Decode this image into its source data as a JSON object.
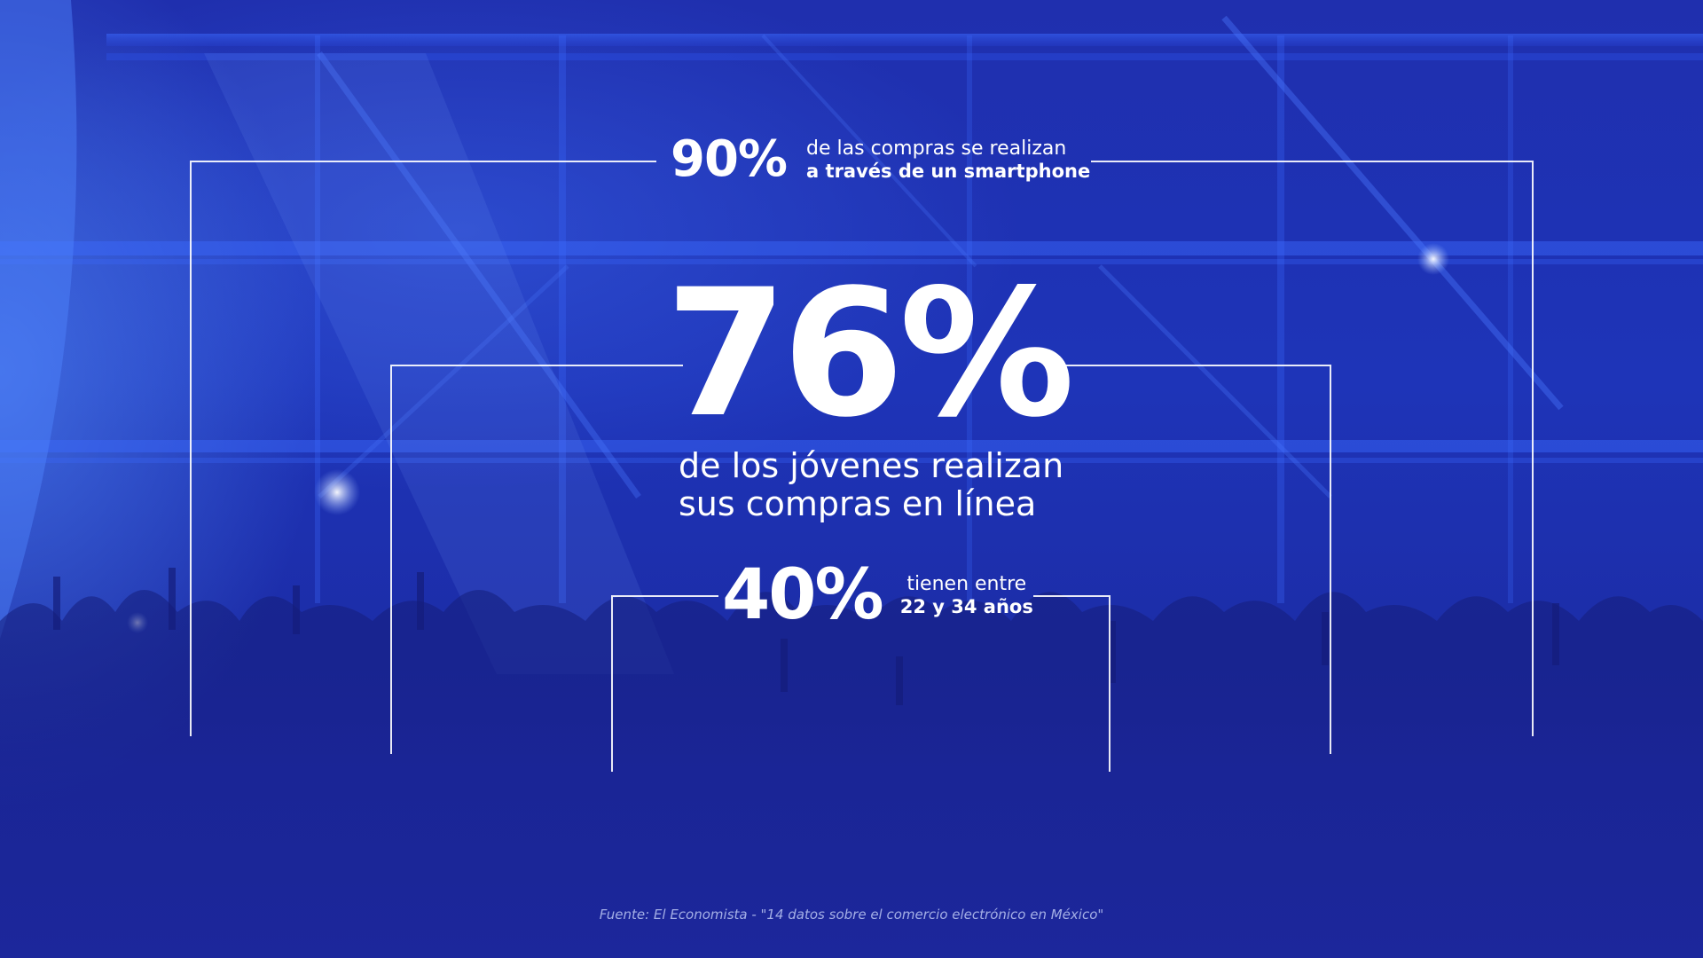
{
  "background": {
    "description_colors": {
      "base": "#1d2fb0",
      "frame_line": "#ffffff"
    }
  },
  "stats": {
    "top": {
      "value": "90%",
      "line1": "de las compras se realizan",
      "line2": "a través de un smartphone"
    },
    "main": {
      "value": "76%",
      "line1": "de los jóvenes realizan",
      "line2": "sus compras en línea"
    },
    "bottom": {
      "value": "40%",
      "line1": "tienen entre",
      "line2": "22 y 34 años"
    }
  },
  "source": "Fuente: El Economista - \"14 datos sobre el comercio electrónico en México\""
}
